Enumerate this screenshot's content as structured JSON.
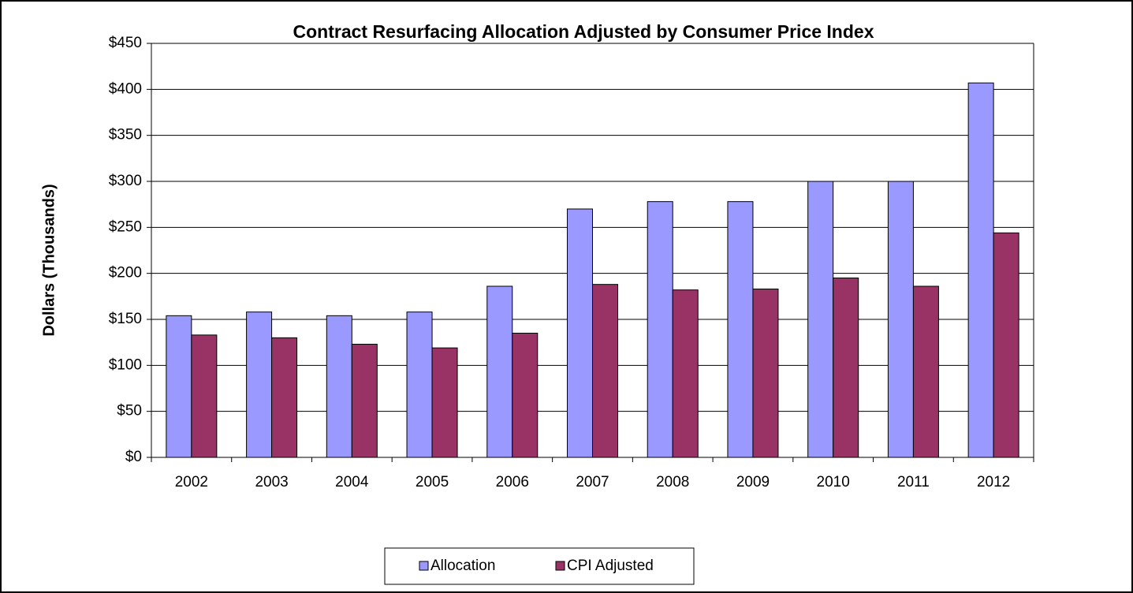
{
  "chart_data": {
    "type": "bar",
    "title": "Contract Resurfacing Allocation Adjusted by Consumer Price Index",
    "y_label": "Dollars (Thousands)",
    "categories": [
      "2002",
      "2003",
      "2004",
      "2005",
      "2006",
      "2007",
      "2008",
      "2009",
      "2010",
      "2011",
      "2012"
    ],
    "series": [
      {
        "name": "Allocation",
        "color": "#9999ff",
        "values": [
          154,
          158,
          154,
          158,
          186,
          270,
          278,
          278,
          300,
          300,
          407
        ]
      },
      {
        "name": "CPI Adjusted",
        "color": "#993366",
        "values": [
          133,
          130,
          123,
          119,
          135,
          188,
          182,
          183,
          195,
          186,
          244
        ]
      }
    ],
    "ylim": [
      0,
      450
    ],
    "yticks": [
      {
        "value": 0,
        "label": "$0"
      },
      {
        "value": 50,
        "label": "$50"
      },
      {
        "value": 100,
        "label": "$100"
      },
      {
        "value": 150,
        "label": "$150"
      },
      {
        "value": 200,
        "label": "$200"
      },
      {
        "value": 250,
        "label": "$250"
      },
      {
        "value": 300,
        "label": "$300"
      },
      {
        "value": 350,
        "label": "$350"
      },
      {
        "value": 400,
        "label": "$400"
      },
      {
        "value": 450,
        "label": "$450"
      }
    ],
    "grid": true,
    "legend": "bottom"
  }
}
